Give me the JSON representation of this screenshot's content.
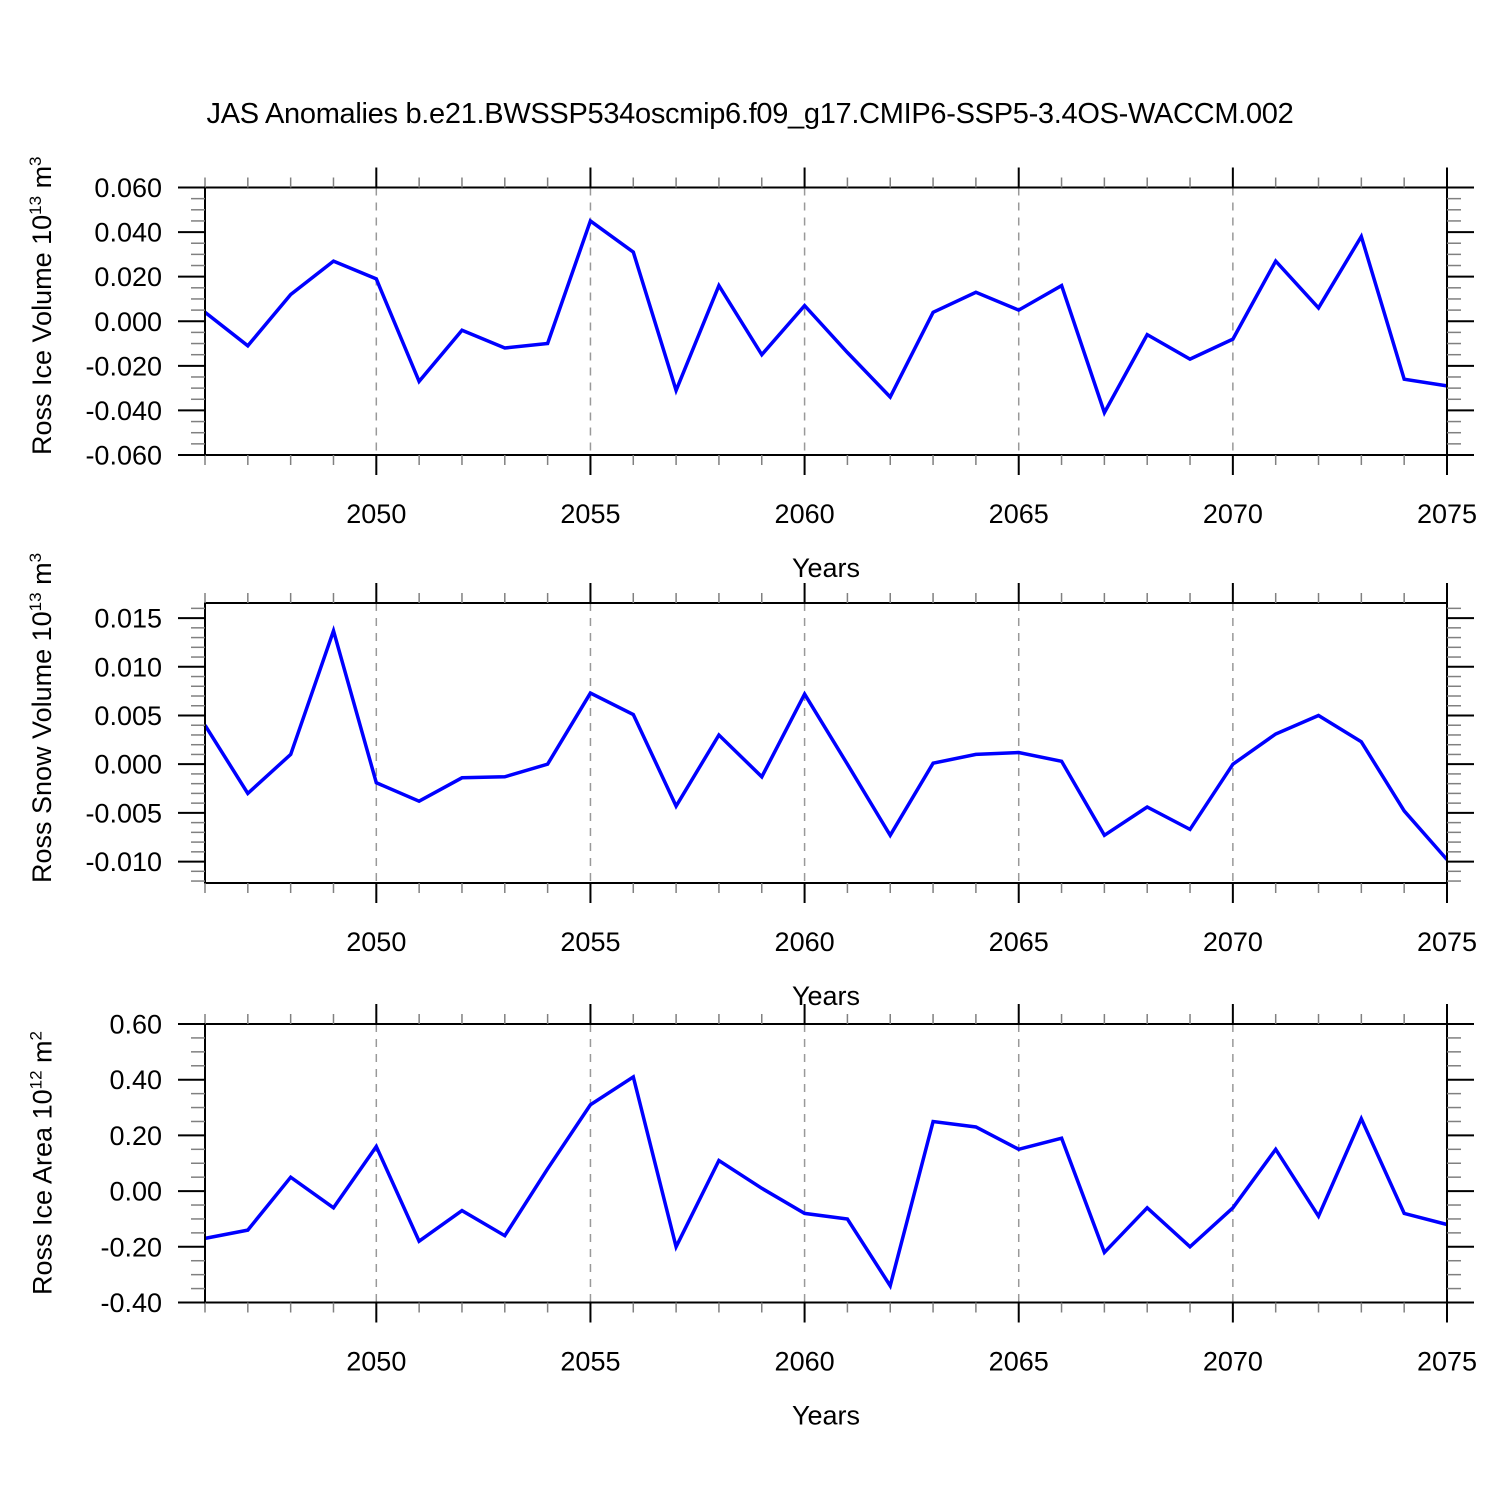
{
  "title": "JAS Anomalies b.e21.BWSSP534oscmip6.f09_g17.CMIP6-SSP5-3.4OS-WACCM.002",
  "xlabel": "Years",
  "line_color": "#0000ff",
  "grid_color": "#999999",
  "axis_color": "#000000",
  "minor_tick_color": "#808080",
  "panels": [
    {
      "ylabel": {
        "text1": "Ross Ice Volume 10",
        "sup1": "13",
        "text2": " m",
        "sup2": "3"
      },
      "ytick_labels": [
        "0.060",
        "0.040",
        "0.020",
        "0.000",
        "-0.020",
        "-0.040",
        "-0.060"
      ],
      "xtick_labels": [
        "2050",
        "2055",
        "2060",
        "2065",
        "2070",
        "2075"
      ],
      "xlabel": "Years"
    },
    {
      "ylabel": {
        "text1": "Ross Snow Volume 10",
        "sup1": "13",
        "text2": " m",
        "sup2": "3"
      },
      "ytick_labels": [
        "0.015",
        "0.010",
        "0.005",
        "0.000",
        "-0.005",
        "-0.010"
      ],
      "xtick_labels": [
        "2050",
        "2055",
        "2060",
        "2065",
        "2070",
        "2075"
      ],
      "xlabel": "Years"
    },
    {
      "ylabel": {
        "text1": "Ross Ice Area 10",
        "sup1": "12",
        "text2": " m",
        "sup2": "2"
      },
      "ytick_labels": [
        "0.60",
        "0.40",
        "0.20",
        "0.00",
        "-0.20",
        "-0.40"
      ],
      "xtick_labels": [
        "2050",
        "2055",
        "2060",
        "2065",
        "2070",
        "2075"
      ],
      "xlabel": "Years"
    }
  ],
  "chart_data": [
    {
      "type": "line",
      "title": "JAS Anomalies b.e21.BWSSP534oscmip6.f09_g17.CMIP6-SSP5-3.4OS-WACCM.002",
      "ylabel": "Ross Ice Volume 10^13 m^3",
      "xlabel": "Years",
      "x": [
        2046,
        2047,
        2048,
        2049,
        2050,
        2051,
        2052,
        2053,
        2054,
        2055,
        2056,
        2057,
        2058,
        2059,
        2060,
        2061,
        2062,
        2063,
        2064,
        2065,
        2066,
        2067,
        2068,
        2069,
        2070,
        2071,
        2072,
        2073,
        2074,
        2075
      ],
      "values": [
        0.004,
        -0.011,
        0.012,
        0.027,
        0.019,
        -0.027,
        -0.004,
        -0.012,
        -0.01,
        0.045,
        0.031,
        -0.031,
        0.016,
        -0.015,
        0.007,
        -0.014,
        -0.034,
        0.004,
        0.013,
        0.005,
        0.016,
        -0.041,
        -0.006,
        -0.017,
        -0.008,
        0.027,
        0.006,
        0.038,
        -0.026,
        -0.029
      ],
      "xlim": [
        2046,
        2075
      ],
      "ylim": [
        -0.06,
        0.06
      ],
      "ytick_values": [
        0.06,
        0.04,
        0.02,
        0.0,
        -0.02,
        -0.04,
        -0.06
      ],
      "y_minor_step": 0.005,
      "xtick_values": [
        2050,
        2055,
        2060,
        2065,
        2070,
        2075
      ],
      "x_minor_step": 1,
      "gridline_x": [
        2050,
        2055,
        2060,
        2065,
        2070
      ],
      "grid": "vertical-dashed",
      "legend": "none"
    },
    {
      "type": "line",
      "title": "",
      "ylabel": "Ross Snow Volume 10^13 m^3",
      "xlabel": "Years",
      "x": [
        2046,
        2047,
        2048,
        2049,
        2050,
        2051,
        2052,
        2053,
        2054,
        2055,
        2056,
        2057,
        2058,
        2059,
        2060,
        2061,
        2062,
        2063,
        2064,
        2065,
        2066,
        2067,
        2068,
        2069,
        2070,
        2071,
        2072,
        2073,
        2074,
        2075
      ],
      "values": [
        0.004,
        -0.003,
        0.001,
        0.0137,
        -0.0019,
        -0.0038,
        -0.0014,
        -0.0013,
        0.0,
        0.0073,
        0.0051,
        -0.0043,
        0.003,
        -0.0013,
        0.0072,
        0.0,
        -0.0073,
        0.0001,
        0.001,
        0.0012,
        0.0003,
        -0.0073,
        -0.0044,
        -0.0067,
        0.0,
        0.0031,
        0.005,
        0.0023,
        -0.0048,
        -0.0098
      ],
      "xlim": [
        2046,
        2075
      ],
      "ylim": [
        -0.0122,
        0.01655
      ],
      "ytick_values": [
        0.015,
        0.01,
        0.005,
        0.0,
        -0.005,
        -0.01
      ],
      "y_minor_step": 0.001,
      "xtick_values": [
        2050,
        2055,
        2060,
        2065,
        2070,
        2075
      ],
      "x_minor_step": 1,
      "gridline_x": [
        2050,
        2055,
        2060,
        2065,
        2070
      ],
      "grid": "vertical-dashed",
      "legend": "none"
    },
    {
      "type": "line",
      "title": "",
      "ylabel": "Ross Ice Area 10^12 m^2",
      "xlabel": "Years",
      "x": [
        2046,
        2047,
        2048,
        2049,
        2050,
        2051,
        2052,
        2053,
        2054,
        2055,
        2056,
        2057,
        2058,
        2059,
        2060,
        2061,
        2062,
        2063,
        2064,
        2065,
        2066,
        2067,
        2068,
        2069,
        2070,
        2071,
        2072,
        2073,
        2074,
        2075
      ],
      "values": [
        -0.17,
        -0.14,
        0.05,
        -0.06,
        0.16,
        -0.18,
        -0.07,
        -0.16,
        0.08,
        0.31,
        0.41,
        -0.2,
        0.11,
        0.01,
        -0.08,
        -0.1,
        -0.34,
        0.25,
        0.23,
        0.15,
        0.19,
        -0.22,
        -0.06,
        -0.2,
        -0.06,
        0.15,
        -0.09,
        0.26,
        -0.08,
        -0.12
      ],
      "xlim": [
        2046,
        2075
      ],
      "ylim": [
        -0.4,
        0.6
      ],
      "ytick_values": [
        0.6,
        0.4,
        0.2,
        0.0,
        -0.2,
        -0.4
      ],
      "y_minor_step": 0.05,
      "xtick_values": [
        2050,
        2055,
        2060,
        2065,
        2070,
        2075
      ],
      "x_minor_step": 1,
      "gridline_x": [
        2050,
        2055,
        2060,
        2065,
        2070
      ],
      "grid": "vertical-dashed",
      "legend": "none"
    }
  ]
}
